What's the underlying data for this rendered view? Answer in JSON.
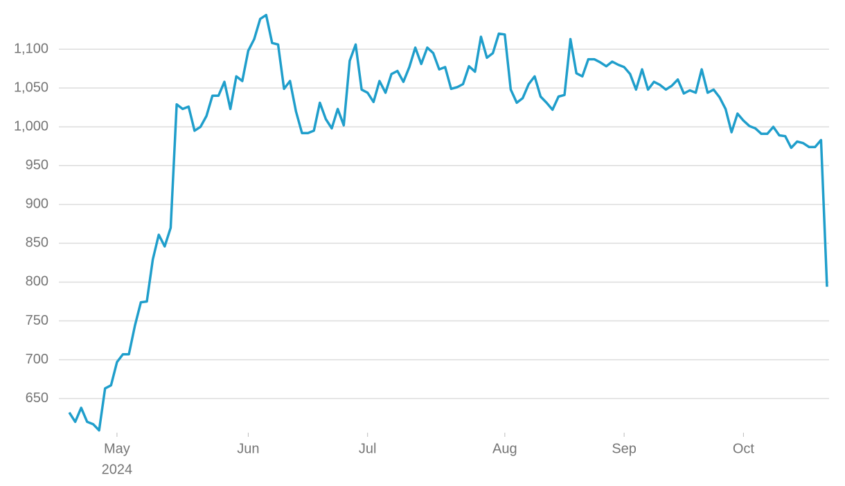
{
  "chart_data": {
    "type": "line",
    "values": [
      632,
      620,
      638,
      620,
      617,
      609,
      663,
      667,
      697,
      707,
      707,
      744,
      774,
      775,
      829,
      861,
      846,
      870,
      1029,
      1023,
      1026,
      995,
      1000,
      1014,
      1040,
      1040,
      1058,
      1023,
      1065,
      1059,
      1098,
      1113,
      1139,
      1144,
      1108,
      1106,
      1049,
      1059,
      1020,
      992,
      992,
      995,
      1031,
      1010,
      998,
      1023,
      1002,
      1085,
      1106,
      1048,
      1044,
      1032,
      1059,
      1044,
      1068,
      1072,
      1058,
      1077,
      1102,
      1081,
      1102,
      1095,
      1074,
      1077,
      1049,
      1051,
      1055,
      1078,
      1071,
      1116,
      1089,
      1095,
      1120,
      1119,
      1048,
      1031,
      1037,
      1055,
      1065,
      1039,
      1031,
      1022,
      1039,
      1041,
      1113,
      1069,
      1065,
      1087,
      1087,
      1083,
      1078,
      1084,
      1080,
      1077,
      1068,
      1048,
      1074,
      1048,
      1058,
      1054,
      1048,
      1053,
      1061,
      1043,
      1047,
      1044,
      1074,
      1044,
      1048,
      1038,
      1023,
      993,
      1017,
      1008,
      1001,
      998,
      991,
      991,
      1000,
      989,
      988,
      973,
      981,
      979,
      974,
      974,
      983,
      794
    ],
    "color": "#1f9ecb",
    "xlim": [
      0,
      127
    ],
    "xticks": [
      {
        "value": 8,
        "label": "May"
      },
      {
        "value": 30,
        "label": "Jun"
      },
      {
        "value": 50,
        "label": "Jul"
      },
      {
        "value": 73,
        "label": "Aug"
      },
      {
        "value": 93,
        "label": "Sep"
      },
      {
        "value": 113,
        "label": "Oct"
      }
    ],
    "year_label": "2024",
    "ylim": [
      606,
      1150
    ],
    "yticks": [
      650,
      700,
      750,
      800,
      850,
      900,
      950,
      {
        "value": 1000,
        "label": "1,000"
      },
      {
        "value": 1050,
        "label": "1,050"
      },
      {
        "value": 1100,
        "label": "1,100"
      }
    ],
    "grid": true
  }
}
